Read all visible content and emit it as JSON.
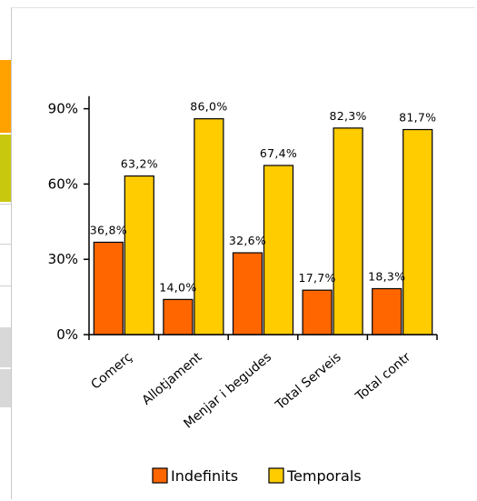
{
  "chart_data": {
    "type": "bar",
    "categories": [
      "Comerç",
      "Allotjament",
      "Menjar i begudes",
      "Total Serveis",
      "Total contr"
    ],
    "series": [
      {
        "name": "Indefinits",
        "values": [
          36.8,
          14.0,
          32.6,
          17.7,
          18.3
        ],
        "labels": [
          "36,8%",
          "14,0%",
          "32,6%",
          "17,7%",
          "18,3%"
        ],
        "color": "#ff6600"
      },
      {
        "name": "Temporals",
        "values": [
          63.2,
          86.0,
          67.4,
          82.3,
          81.7
        ],
        "labels": [
          "63,2%",
          "86,0%",
          "67,4%",
          "82,3%",
          "81,7%"
        ],
        "color": "#ffcc00"
      }
    ],
    "yticks": [
      0,
      30,
      60,
      90
    ],
    "ytick_labels": [
      "0%",
      "30%",
      "60%",
      "90%"
    ],
    "ylim": [
      0,
      100
    ],
    "legend_position": "bottom",
    "grid": false
  },
  "left_strip_colors": [
    "#ffa200",
    "#c8c80f",
    "#d8d8d8"
  ]
}
